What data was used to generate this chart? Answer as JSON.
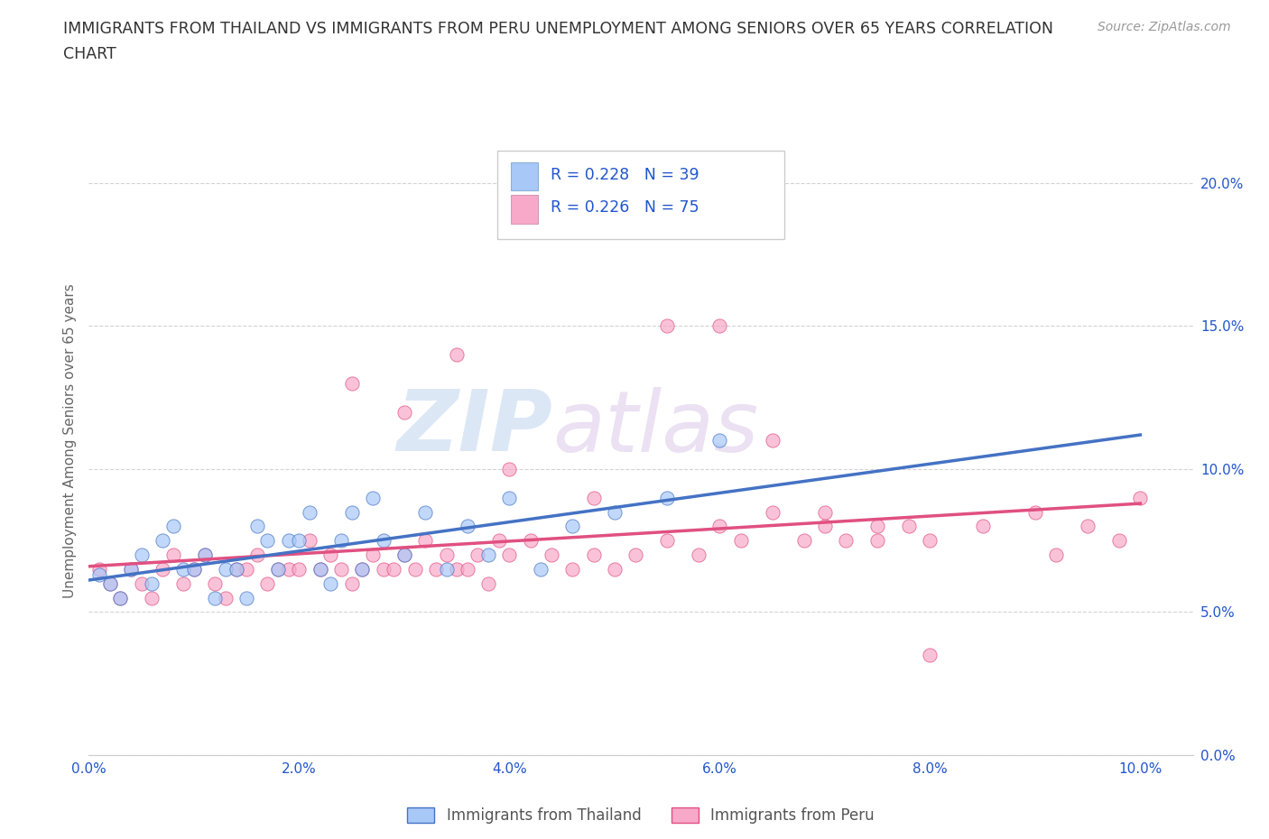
{
  "title_line1": "IMMIGRANTS FROM THAILAND VS IMMIGRANTS FROM PERU UNEMPLOYMENT AMONG SENIORS OVER 65 YEARS CORRELATION",
  "title_line2": "CHART",
  "source": "Source: ZipAtlas.com",
  "ylabel": "Unemployment Among Seniors over 65 years",
  "xlim": [
    0.0,
    0.105
  ],
  "ylim": [
    0.0,
    0.22
  ],
  "xticks": [
    0.0,
    0.02,
    0.04,
    0.06,
    0.08,
    0.1
  ],
  "yticks": [
    0.0,
    0.05,
    0.1,
    0.15,
    0.2
  ],
  "xtick_labels": [
    "0.0%",
    "2.0%",
    "4.0%",
    "6.0%",
    "8.0%",
    "10.0%"
  ],
  "ytick_labels": [
    "0.0%",
    "5.0%",
    "10.0%",
    "15.0%",
    "20.0%"
  ],
  "legend_bottom": [
    "Immigrants from Thailand",
    "Immigrants from Peru"
  ],
  "color_thailand": "#a8c8f8",
  "color_peru": "#f8a8c8",
  "color_line_thailand": "#4472c4",
  "color_line_peru": "#e05080",
  "color_text_blue": "#2255cc",
  "background_color": "#ffffff",
  "grid_color": "#c8c8c8",
  "thailand_x": [
    0.001,
    0.002,
    0.003,
    0.004,
    0.005,
    0.006,
    0.007,
    0.008,
    0.009,
    0.01,
    0.011,
    0.012,
    0.013,
    0.014,
    0.015,
    0.016,
    0.017,
    0.018,
    0.019,
    0.02,
    0.021,
    0.022,
    0.023,
    0.024,
    0.025,
    0.026,
    0.027,
    0.028,
    0.03,
    0.032,
    0.034,
    0.036,
    0.038,
    0.04,
    0.043,
    0.046,
    0.05,
    0.055,
    0.06
  ],
  "thailand_y": [
    0.063,
    0.06,
    0.055,
    0.065,
    0.07,
    0.06,
    0.075,
    0.08,
    0.065,
    0.065,
    0.07,
    0.055,
    0.065,
    0.065,
    0.055,
    0.08,
    0.075,
    0.065,
    0.075,
    0.075,
    0.085,
    0.065,
    0.06,
    0.075,
    0.085,
    0.065,
    0.09,
    0.075,
    0.07,
    0.085,
    0.065,
    0.08,
    0.07,
    0.09,
    0.065,
    0.08,
    0.085,
    0.09,
    0.11
  ],
  "peru_x": [
    0.001,
    0.002,
    0.003,
    0.004,
    0.005,
    0.006,
    0.007,
    0.008,
    0.009,
    0.01,
    0.011,
    0.012,
    0.013,
    0.014,
    0.015,
    0.016,
    0.017,
    0.018,
    0.019,
    0.02,
    0.021,
    0.022,
    0.023,
    0.024,
    0.025,
    0.026,
    0.027,
    0.028,
    0.029,
    0.03,
    0.031,
    0.032,
    0.033,
    0.034,
    0.035,
    0.036,
    0.037,
    0.038,
    0.039,
    0.04,
    0.042,
    0.044,
    0.046,
    0.048,
    0.05,
    0.052,
    0.055,
    0.058,
    0.06,
    0.062,
    0.065,
    0.068,
    0.07,
    0.072,
    0.075,
    0.078,
    0.08,
    0.085,
    0.09,
    0.092,
    0.095,
    0.098,
    0.1,
    0.025,
    0.03,
    0.035,
    0.04,
    0.048,
    0.055,
    0.06,
    0.065,
    0.07,
    0.075,
    0.08
  ],
  "peru_y": [
    0.065,
    0.06,
    0.055,
    0.065,
    0.06,
    0.055,
    0.065,
    0.07,
    0.06,
    0.065,
    0.07,
    0.06,
    0.055,
    0.065,
    0.065,
    0.07,
    0.06,
    0.065,
    0.065,
    0.065,
    0.075,
    0.065,
    0.07,
    0.065,
    0.06,
    0.065,
    0.07,
    0.065,
    0.065,
    0.07,
    0.065,
    0.075,
    0.065,
    0.07,
    0.065,
    0.065,
    0.07,
    0.06,
    0.075,
    0.07,
    0.075,
    0.07,
    0.065,
    0.07,
    0.065,
    0.07,
    0.075,
    0.07,
    0.08,
    0.075,
    0.085,
    0.075,
    0.08,
    0.075,
    0.075,
    0.08,
    0.075,
    0.08,
    0.085,
    0.07,
    0.08,
    0.075,
    0.09,
    0.13,
    0.12,
    0.14,
    0.1,
    0.09,
    0.15,
    0.15,
    0.11,
    0.085,
    0.08,
    0.035
  ]
}
